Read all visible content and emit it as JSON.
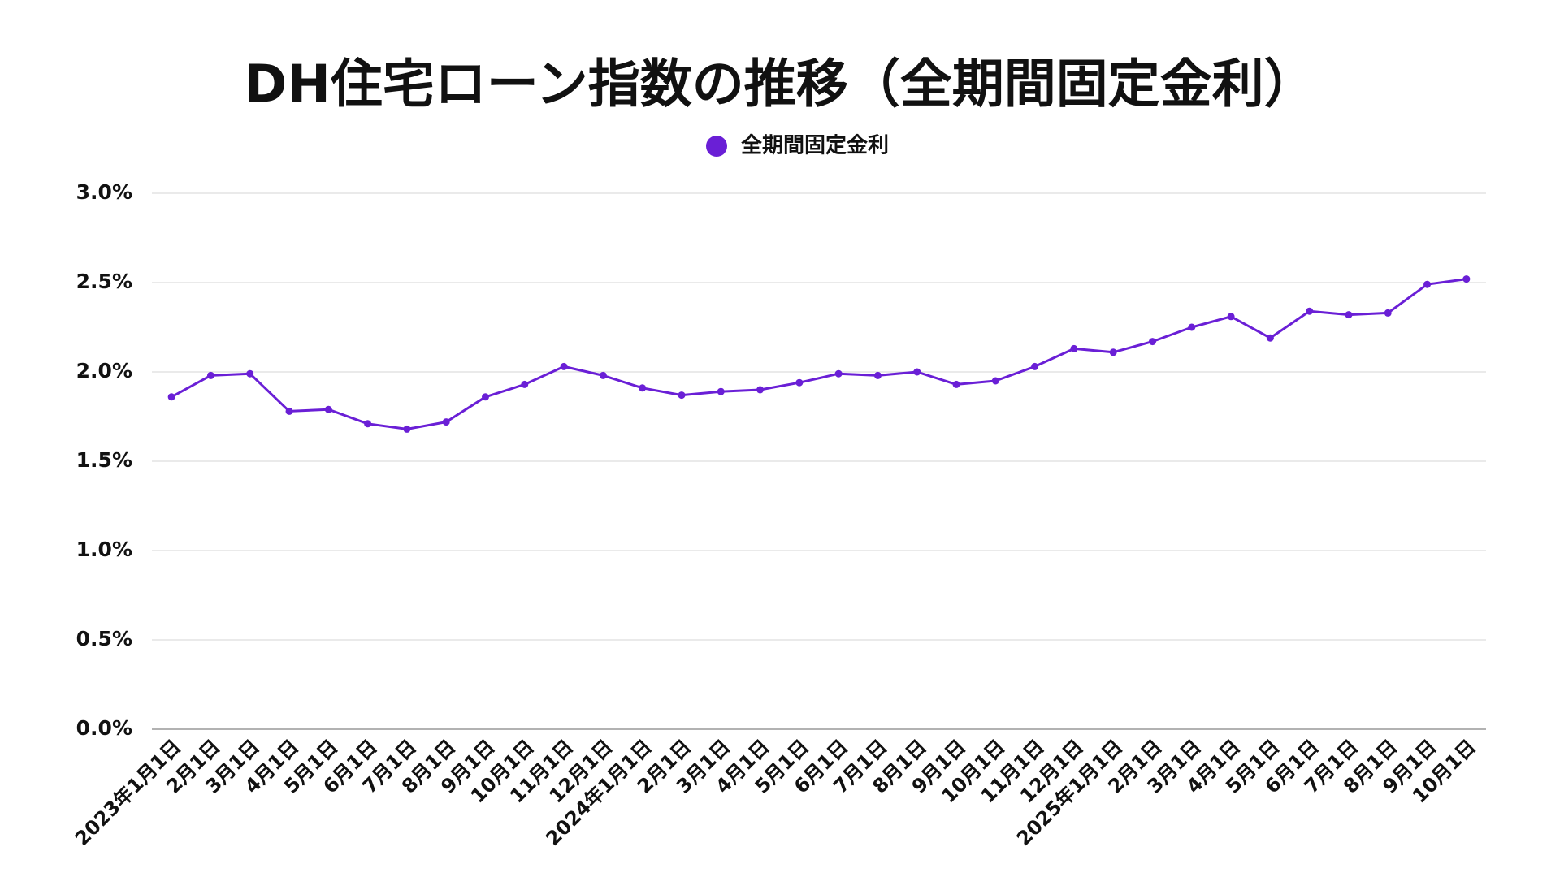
{
  "chart_data": {
    "type": "line",
    "title": "DH住宅ローン指数の推移（全期間固定金利）",
    "categories": [
      "2023年1月1日",
      "2月1日",
      "3月1日",
      "4月1日",
      "5月1日",
      "6月1日",
      "7月1日",
      "8月1日",
      "9月1日",
      "10月1日",
      "11月1日",
      "12月1日",
      "2024年1月1日",
      "2月1日",
      "3月1日",
      "4月1日",
      "5月1日",
      "6月1日",
      "7月1日",
      "8月1日",
      "9月1日",
      "10月1日",
      "11月1日",
      "12月1日",
      "2025年1月1日",
      "2月1日",
      "3月1日",
      "4月1日",
      "5月1日",
      "6月1日",
      "7月1日",
      "8月1日",
      "9月1日",
      "10月1日"
    ],
    "series": [
      {
        "name": "全期間固定金利",
        "color": "#6a1fd6",
        "values": [
          1.86,
          1.98,
          1.99,
          1.78,
          1.79,
          1.71,
          1.68,
          1.72,
          1.86,
          1.93,
          2.03,
          1.98,
          1.91,
          1.87,
          1.89,
          1.9,
          1.94,
          1.99,
          1.98,
          2.0,
          1.93,
          1.95,
          2.03,
          2.13,
          2.11,
          2.17,
          2.25,
          2.31,
          2.19,
          2.34,
          2.32,
          2.33,
          2.49,
          2.52
        ]
      }
    ],
    "ylim": [
      0,
      3
    ],
    "yticks": [
      {
        "value": 0,
        "label": "0.0%"
      },
      {
        "value": 0.5,
        "label": "0.5%"
      },
      {
        "value": 1,
        "label": "1.0%"
      },
      {
        "value": 1.5,
        "label": "1.5%"
      },
      {
        "value": 2,
        "label": "2.0%"
      },
      {
        "value": 2.5,
        "label": "2.5%"
      },
      {
        "value": 3,
        "label": "3.0%"
      }
    ],
    "grid": true,
    "legend": "top"
  }
}
